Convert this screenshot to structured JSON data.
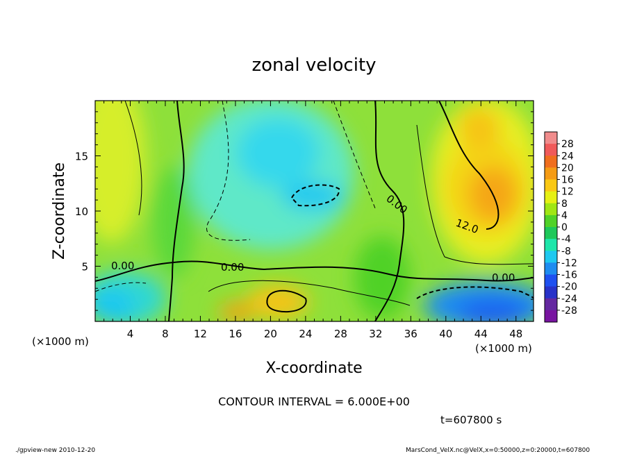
{
  "chart_data": {
    "type": "heatmap",
    "title": "zonal velocity",
    "xlabel": "X-coordinate",
    "ylabel": "Z-coordinate",
    "x_unit": "(×1000 m)",
    "y_unit": "(×1000 m)",
    "xlim": [
      0,
      50
    ],
    "ylim": [
      0,
      20
    ],
    "x_ticks": [
      4,
      8,
      12,
      16,
      20,
      24,
      28,
      32,
      36,
      40,
      44,
      48
    ],
    "y_ticks": [
      5,
      10,
      15
    ],
    "colorbar": {
      "labels": [
        28,
        24,
        20,
        16,
        12,
        8,
        4,
        0,
        -4,
        -8,
        -12,
        -16,
        -20,
        -24,
        -28
      ],
      "colors": [
        "#f08c8c",
        "#f05a5a",
        "#f06e1e",
        "#f59b14",
        "#fac814",
        "#e6f014",
        "#a0e614",
        "#50d228",
        "#1ec85a",
        "#1ee6aa",
        "#1ec8f0",
        "#1e8cf0",
        "#1e50f0",
        "#2832c8",
        "#6428a0",
        "#7814a0"
      ]
    },
    "contour_labels": [
      "0.00",
      "0.00",
      "0.00",
      "0.00",
      "12.0"
    ],
    "contour_interval_text": "CONTOUR INTERVAL = 6.000E+00",
    "time_text": "t=607800 s"
  },
  "footer": {
    "left": "./gpview-new  2010-12-20",
    "right": "MarsCond_VelX.nc@VelX,x=0:50000,z=0:20000,t=607800"
  }
}
